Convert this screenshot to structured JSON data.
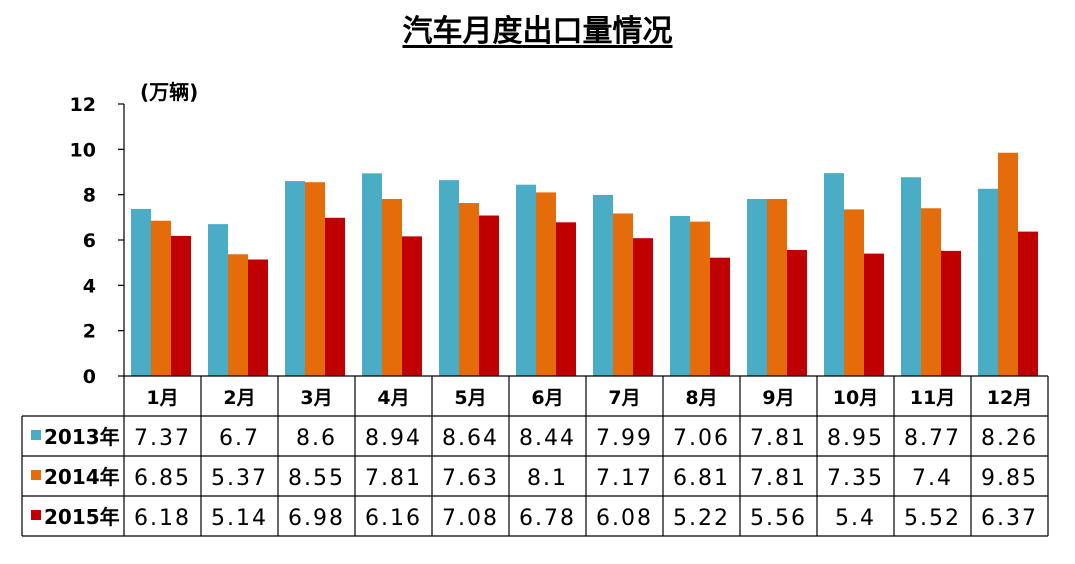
{
  "title": "汽车月度出口量情况",
  "unit": "(万辆)",
  "chart_data": {
    "type": "bar",
    "title": "汽车月度出口量情况",
    "ylabel": "(万辆)",
    "ylim": [
      0,
      12
    ],
    "yticks": [
      "0",
      "2",
      "4",
      "6",
      "8",
      "10",
      "12"
    ],
    "grid": false,
    "legend": "data-table-left",
    "categories": [
      "1月",
      "2月",
      "3月",
      "4月",
      "5月",
      "6月",
      "7月",
      "8月",
      "9月",
      "10月",
      "11月",
      "12月"
    ],
    "series": [
      {
        "name": "2013年",
        "color": "#4BACC6",
        "values": [
          7.37,
          6.7,
          8.6,
          8.94,
          8.64,
          8.44,
          7.99,
          7.06,
          7.81,
          8.95,
          8.77,
          8.26
        ],
        "labels": [
          "7.37",
          "6.7",
          "8.6",
          "8.94",
          "8.64",
          "8.44",
          "7.99",
          "7.06",
          "7.81",
          "8.95",
          "8.77",
          "8.26"
        ]
      },
      {
        "name": "2014年",
        "color": "#E46C0A",
        "values": [
          6.85,
          5.37,
          8.55,
          7.81,
          7.63,
          8.1,
          7.17,
          6.81,
          7.81,
          7.35,
          7.4,
          9.85
        ],
        "labels": [
          "6.85",
          "5.37",
          "8.55",
          "7.81",
          "7.63",
          "8.1",
          "7.17",
          "6.81",
          "7.81",
          "7.35",
          "7.4",
          "9.85"
        ]
      },
      {
        "name": "2015年",
        "color": "#C00000",
        "values": [
          6.18,
          5.14,
          6.98,
          6.16,
          7.08,
          6.78,
          6.08,
          5.22,
          5.56,
          5.4,
          5.52,
          6.37
        ],
        "labels": [
          "6.18",
          "5.14",
          "6.98",
          "6.16",
          "7.08",
          "6.78",
          "6.08",
          "5.22",
          "5.56",
          "5.4",
          "5.52",
          "6.37"
        ]
      }
    ]
  }
}
